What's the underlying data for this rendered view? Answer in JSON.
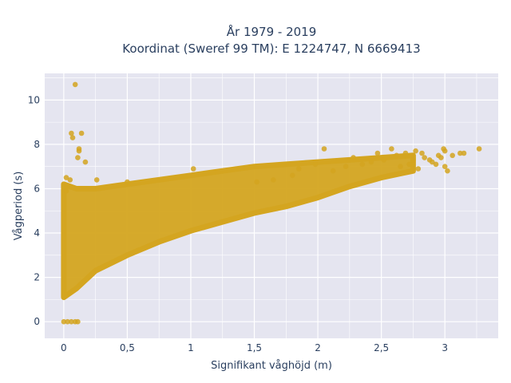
{
  "chart_data": {
    "type": "scatter",
    "title_lines": [
      "År 1979 - 2019",
      "Koordinat (Sweref 99 TM): E 1224747, N 6669413"
    ],
    "xlabel": "Signifikant våghöjd (m)",
    "ylabel": "Vågperiod (s)",
    "xlim": [
      -0.15,
      3.42
    ],
    "ylim": [
      -0.75,
      11.2
    ],
    "x_ticks": [
      0,
      0.5,
      1,
      1.5,
      2,
      2.5,
      3
    ],
    "x_tick_labels": [
      "0",
      "0,5",
      "1",
      "1,5",
      "2",
      "2,5",
      "3"
    ],
    "y_ticks": [
      0,
      2,
      4,
      6,
      8,
      10
    ],
    "y_tick_labels": [
      "0",
      "2",
      "4",
      "6",
      "8",
      "10"
    ],
    "grid": true,
    "legend": "none",
    "marker_color": "#D4A520",
    "background_color": "#E5E5F0",
    "grid_color": "#ffffff",
    "main_band": {
      "x": [
        0.0,
        0.1,
        0.25,
        0.5,
        0.75,
        1.0,
        1.25,
        1.5,
        1.75,
        2.0,
        2.25,
        2.5,
        2.75
      ],
      "y_lower": [
        1.1,
        1.5,
        2.3,
        3.0,
        3.6,
        4.1,
        4.5,
        4.9,
        5.2,
        5.6,
        6.1,
        6.5,
        6.8
      ],
      "y_upper": [
        6.2,
        6.0,
        6.0,
        6.2,
        6.4,
        6.6,
        6.8,
        7.0,
        7.1,
        7.2,
        7.3,
        7.4,
        7.5
      ]
    },
    "series": [
      {
        "values": [
          [
            0.0,
            0.0
          ],
          [
            0.03,
            0.0
          ],
          [
            0.06,
            0.0
          ],
          [
            0.09,
            0.0
          ],
          [
            0.11,
            0.0
          ],
          [
            0.09,
            10.7
          ],
          [
            0.06,
            8.5
          ],
          [
            0.07,
            8.3
          ],
          [
            0.14,
            8.5
          ],
          [
            0.12,
            7.8
          ],
          [
            0.12,
            7.7
          ],
          [
            0.11,
            7.4
          ],
          [
            0.17,
            7.2
          ],
          [
            0.02,
            6.5
          ],
          [
            0.05,
            6.4
          ],
          [
            0.02,
            5.9
          ],
          [
            0.26,
            6.4
          ],
          [
            0.5,
            6.3
          ],
          [
            1.02,
            6.9
          ],
          [
            1.52,
            6.3
          ],
          [
            1.65,
            6.4
          ],
          [
            1.8,
            6.6
          ],
          [
            1.85,
            6.9
          ],
          [
            1.98,
            7.1
          ],
          [
            2.05,
            7.8
          ],
          [
            2.12,
            6.8
          ],
          [
            2.22,
            7.0
          ],
          [
            2.28,
            7.4
          ],
          [
            2.35,
            7.1
          ],
          [
            2.42,
            7.2
          ],
          [
            2.47,
            7.6
          ],
          [
            2.52,
            7.3
          ],
          [
            2.58,
            7.8
          ],
          [
            2.62,
            7.5
          ],
          [
            2.65,
            7.0
          ],
          [
            2.69,
            7.6
          ],
          [
            2.72,
            7.1
          ],
          [
            2.75,
            7.3
          ],
          [
            2.77,
            7.7
          ],
          [
            2.79,
            6.9
          ],
          [
            2.82,
            7.6
          ],
          [
            2.84,
            7.4
          ],
          [
            2.88,
            7.3
          ],
          [
            2.9,
            7.2
          ],
          [
            2.93,
            7.1
          ],
          [
            2.95,
            7.5
          ],
          [
            2.97,
            7.4
          ],
          [
            2.99,
            7.8
          ],
          [
            3.0,
            7.0
          ],
          [
            3.0,
            7.7
          ],
          [
            3.02,
            6.8
          ],
          [
            3.06,
            7.5
          ],
          [
            3.12,
            7.6
          ],
          [
            3.15,
            7.6
          ],
          [
            3.27,
            7.8
          ]
        ]
      }
    ]
  }
}
